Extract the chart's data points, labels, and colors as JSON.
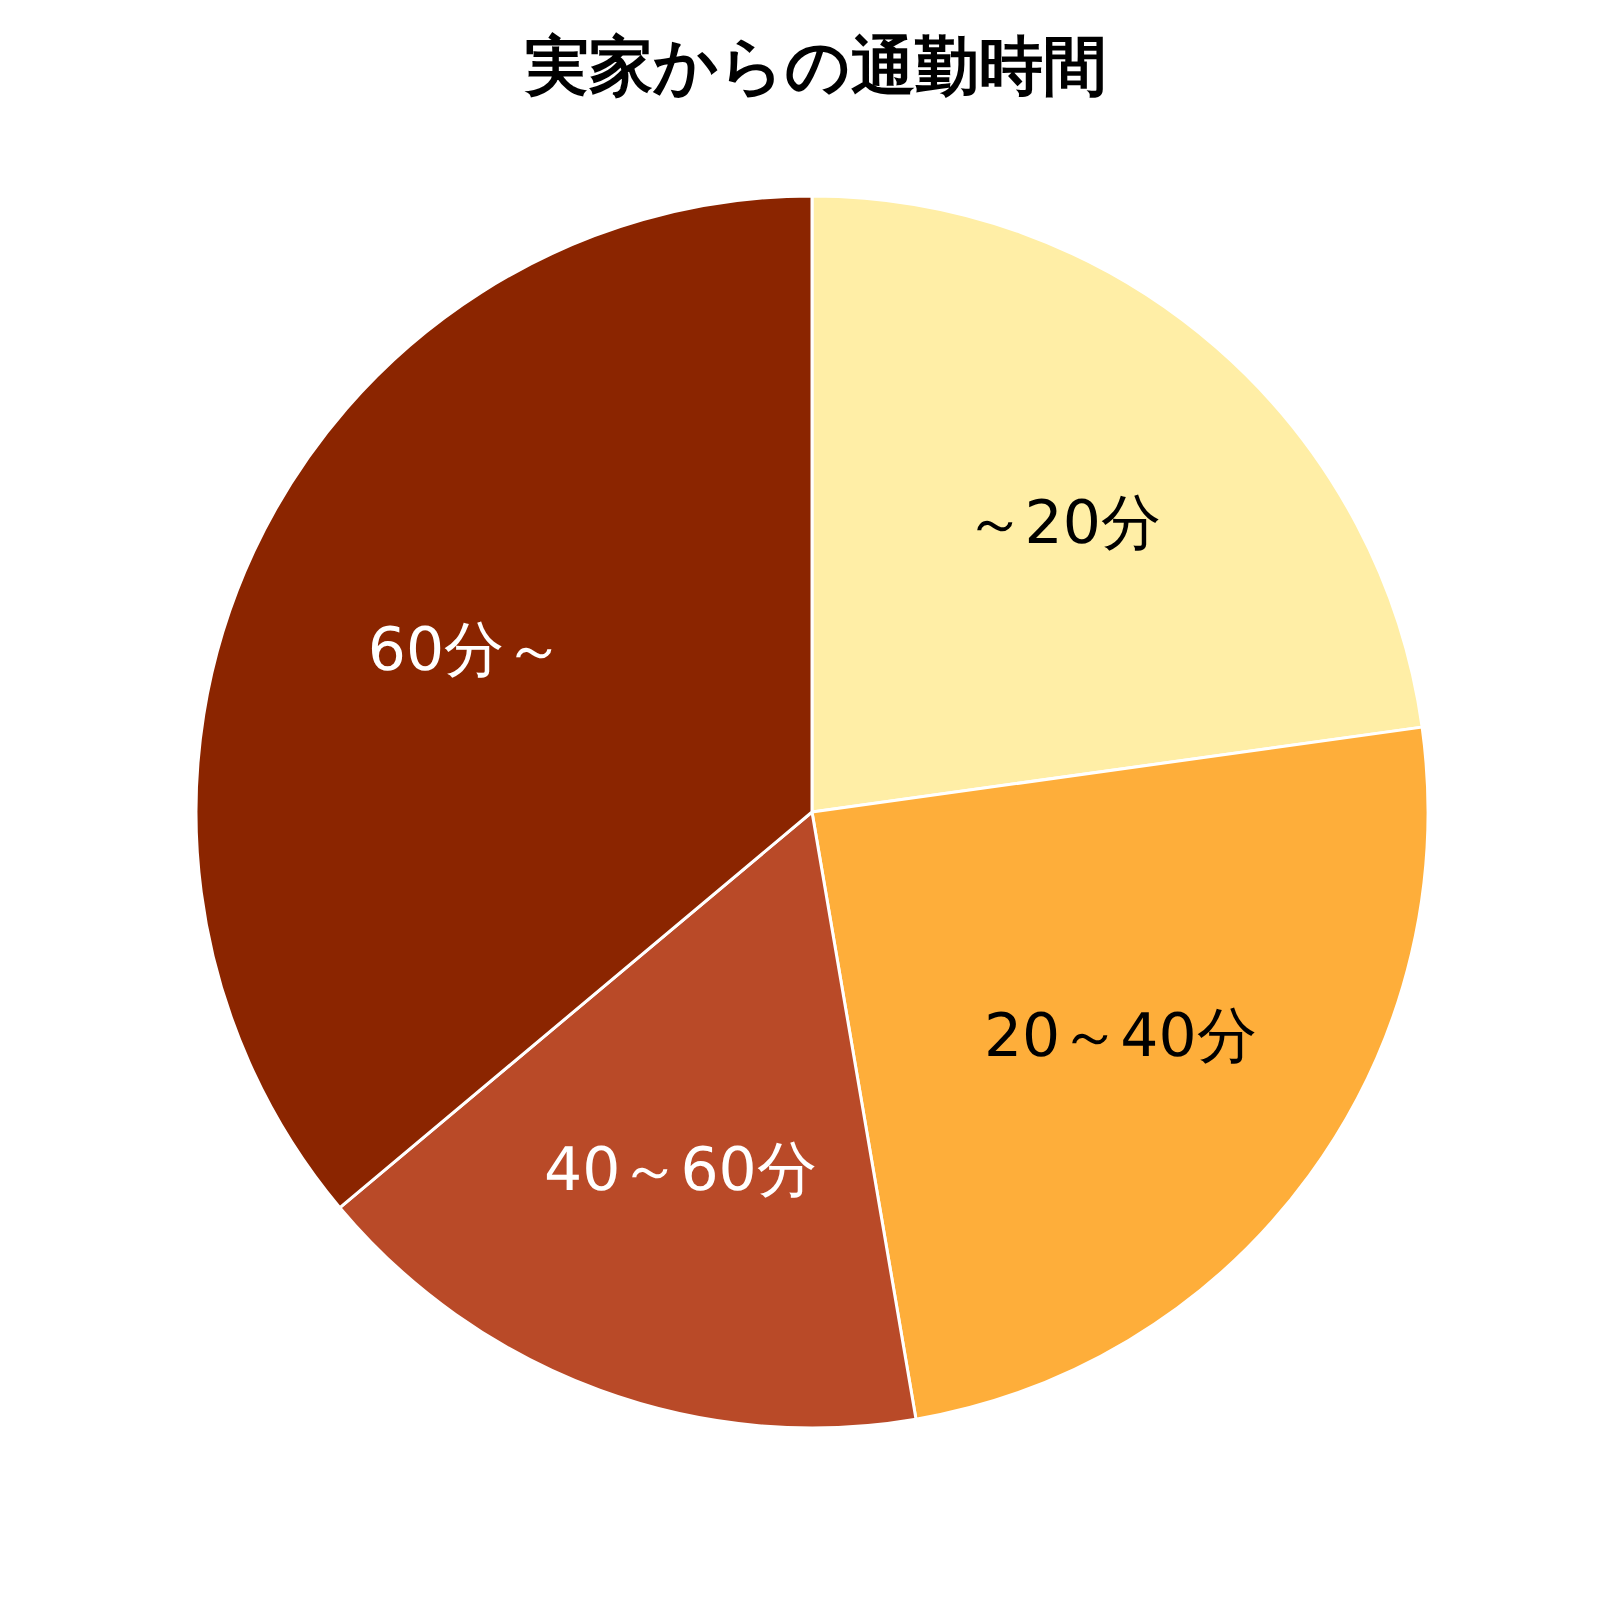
{
  "chart_data": {
    "type": "pie",
    "title": "実家からの通勤時間",
    "categories": [
      "～20分",
      "20～40分",
      "40～60分",
      "60分～"
    ],
    "values": [
      22.8,
      24.5,
      16.6,
      36.1
    ],
    "colors": [
      "#ffeea6",
      "#feae3a",
      "#b94a28",
      "#8b2500"
    ]
  }
}
